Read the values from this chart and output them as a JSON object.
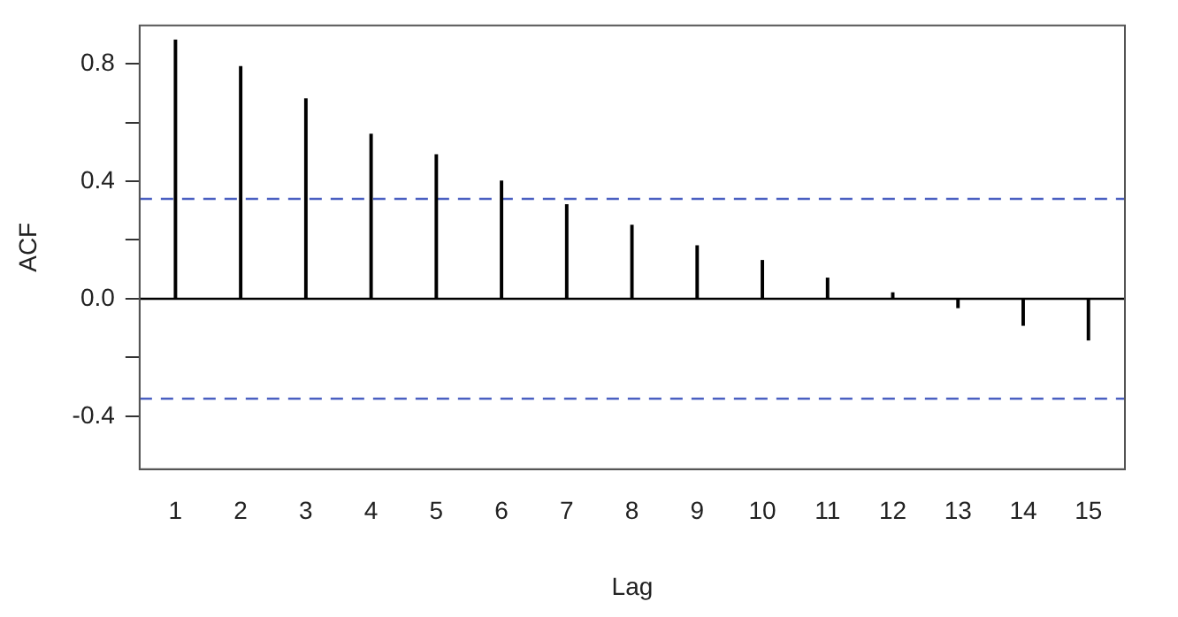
{
  "chart_data": {
    "type": "bar",
    "xlabel": "Lag",
    "ylabel": "ACF",
    "x": [
      1,
      2,
      3,
      4,
      5,
      6,
      7,
      8,
      9,
      10,
      11,
      12,
      13,
      14,
      15
    ],
    "values": [
      0.88,
      0.79,
      0.68,
      0.56,
      0.49,
      0.4,
      0.32,
      0.25,
      0.18,
      0.13,
      0.07,
      0.02,
      -0.03,
      -0.09,
      -0.14
    ],
    "color": "#000000",
    "xlim": [
      0.45,
      15.56
    ],
    "xticks": [
      1,
      2,
      3,
      4,
      5,
      6,
      7,
      8,
      9,
      10,
      11,
      12,
      13,
      14,
      15
    ],
    "ylim": [
      -0.58,
      0.93
    ],
    "yticks": [
      {
        "value": -0.4,
        "label": "-0.4"
      },
      {
        "value": -0.2,
        "label": null
      },
      {
        "value": 0,
        "label": "0.0"
      },
      {
        "value": 0.2,
        "label": null
      },
      {
        "value": 0.4,
        "label": "0.4"
      },
      {
        "value": 0.6,
        "label": null
      },
      {
        "value": 0.8,
        "label": "0.8"
      }
    ],
    "ref_lines": [
      {
        "axis": "y",
        "value": 0.34,
        "color": "#4a5fc1",
        "line_style": "dashed"
      },
      {
        "axis": "y",
        "value": -0.34,
        "color": "#4a5fc1",
        "line_style": "dashed"
      },
      {
        "axis": "y",
        "value": 0,
        "color": "#000000",
        "line_style": "solid"
      }
    ],
    "grid": false,
    "legend": false
  }
}
